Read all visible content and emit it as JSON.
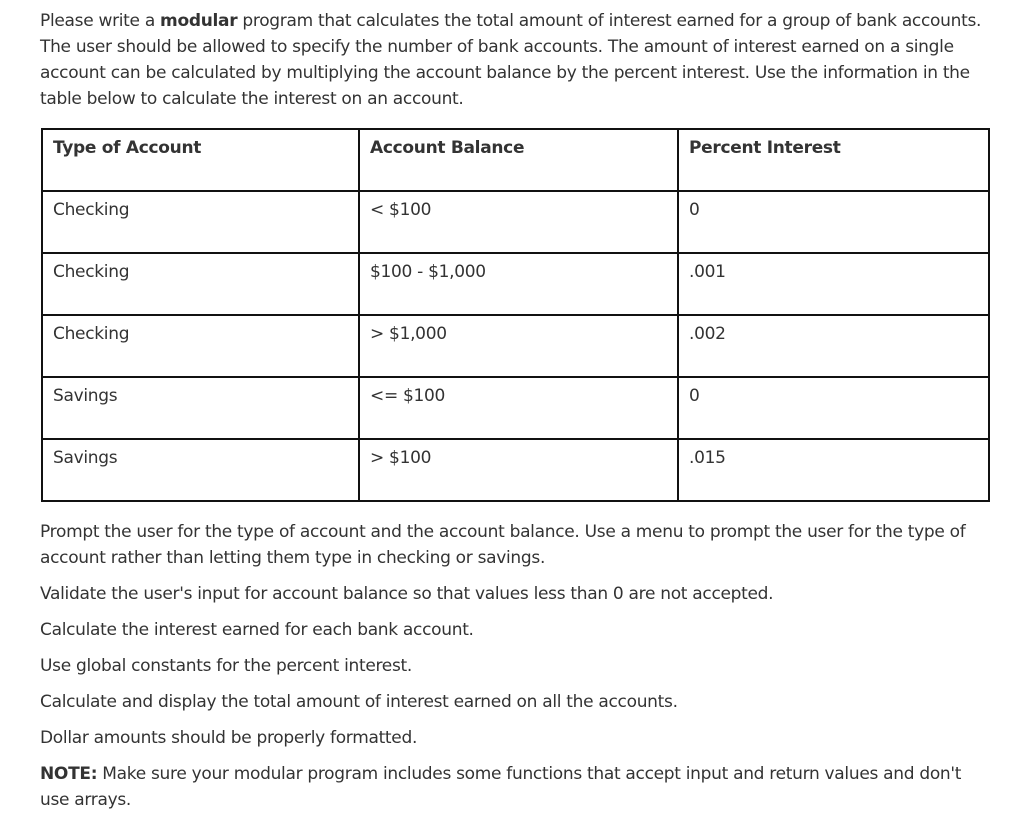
{
  "intro": {
    "before": "Please write a ",
    "bold": "modular",
    "after": " program that calculates the total amount of interest earned for a group of bank accounts. The user should be allowed to specify the number of bank accounts. The amount of interest earned on a single account can be calculated by multiplying the account balance by the percent interest. Use the information in the table below to calculate the interest on an account."
  },
  "table": {
    "headers": [
      "Type of Account",
      "Account Balance",
      "Percent Interest"
    ],
    "rows": [
      [
        "Checking",
        "< $100",
        "0"
      ],
      [
        "Checking",
        "$100 - $1,000",
        ".001"
      ],
      [
        "Checking",
        "> $1,000",
        ".002"
      ],
      [
        "Savings",
        "<= $100",
        "0"
      ],
      [
        "Savings",
        "> $100",
        ".015"
      ]
    ]
  },
  "paragraphs": [
    "Prompt the user for the type of account and the account balance. Use a menu to prompt the user for the type of account rather than letting them type in checking or savings.",
    "Validate the user's input for account balance so that values less than 0 are not accepted.",
    "Calculate the interest earned for each bank account.",
    "Use global constants for the percent interest.",
    "Calculate and display the total amount of interest earned on all the accounts.",
    "Dollar amounts should be properly formatted."
  ],
  "note": {
    "label": "NOTE:",
    "text": " Make sure your modular program includes some functions that accept input and return values and don't use arrays."
  }
}
